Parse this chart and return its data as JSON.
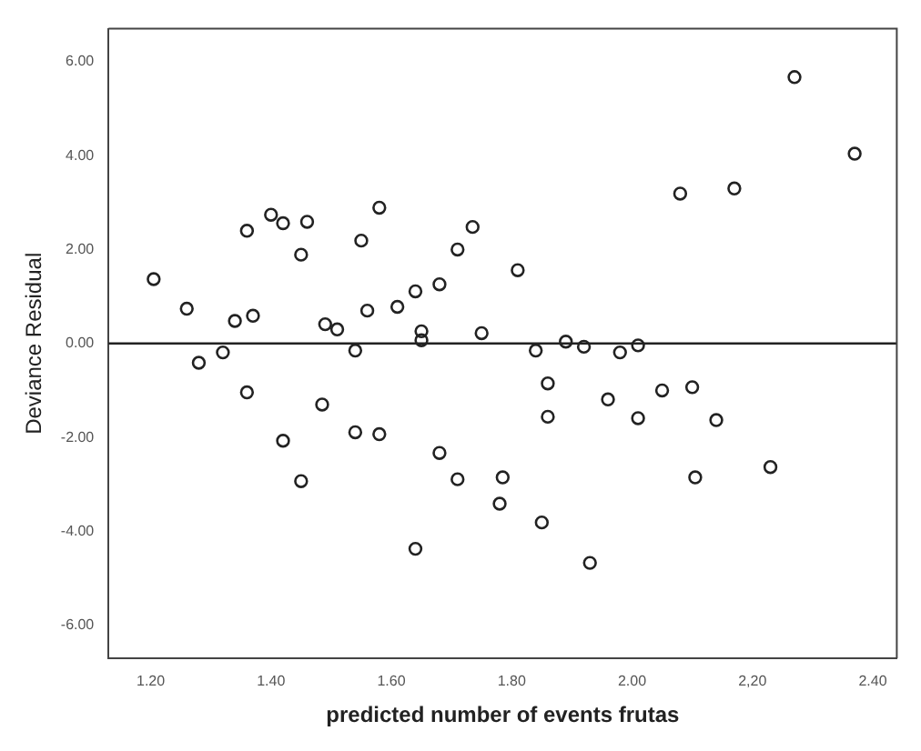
{
  "chart_data": {
    "type": "scatter",
    "xlabel": "predicted number of events frutas",
    "ylabel": "Deviance Residual",
    "x": [
      1.205,
      1.26,
      1.34,
      1.37,
      1.36,
      1.4,
      1.42,
      1.45,
      1.46,
      1.49,
      1.51,
      1.55,
      1.58,
      1.56,
      1.61,
      1.64,
      1.68,
      1.71,
      1.65,
      1.65,
      1.735,
      1.81,
      1.75,
      2.08,
      2.17,
      2.27,
      2.37,
      1.84,
      1.89,
      1.92,
      1.98,
      2.01,
      1.28,
      1.32,
      1.36,
      1.485,
      1.54,
      1.42,
      1.45,
      1.54,
      1.58,
      1.68,
      1.71,
      1.64,
      1.785,
      1.78,
      1.85,
      1.93,
      1.86,
      1.86,
      1.96,
      2.01,
      2.05,
      2.1,
      2.14,
      2.105,
      2.23
    ],
    "values": [
      1.37,
      0.74,
      0.48,
      0.59,
      2.4,
      2.74,
      2.56,
      1.89,
      2.59,
      0.41,
      0.3,
      2.19,
      2.89,
      0.7,
      0.78,
      1.11,
      1.26,
      2.0,
      0.26,
      0.07,
      2.48,
      1.56,
      0.22,
      3.19,
      3.3,
      5.67,
      4.04,
      -0.15,
      0.04,
      -0.07,
      -0.19,
      -0.04,
      -0.41,
      -0.19,
      -1.04,
      -1.3,
      -0.15,
      -2.07,
      -2.93,
      -1.89,
      -1.93,
      -2.33,
      -2.89,
      -4.37,
      -2.85,
      -3.41,
      -3.81,
      -4.67,
      -0.85,
      -1.56,
      -1.19,
      -1.59,
      -1.0,
      -0.93,
      -1.63,
      -2.85,
      -2.63
    ],
    "color": "#222222",
    "marker": "circle",
    "xlim": [
      1.13,
      2.44
    ],
    "xticks": [
      {
        "value": 1.2,
        "label": "1.20"
      },
      {
        "value": 1.4,
        "label": "1.40"
      },
      {
        "value": 1.6,
        "label": "1.60"
      },
      {
        "value": 1.8,
        "label": "1.80"
      },
      {
        "value": 2.0,
        "label": "2.00"
      },
      {
        "value": 2.2,
        "label": "2,20"
      },
      {
        "value": 2.4,
        "label": "2.40"
      }
    ],
    "ylim": [
      -6.7,
      6.7
    ],
    "yticks": [
      {
        "value": -6,
        "label": "-6.00"
      },
      {
        "value": -4,
        "label": "-4.00"
      },
      {
        "value": -2,
        "label": "-2.00"
      },
      {
        "value": 0,
        "label": "0.00"
      },
      {
        "value": 2,
        "label": "2.00"
      },
      {
        "value": 4,
        "label": "4.00"
      },
      {
        "value": 6,
        "label": "6.00"
      }
    ],
    "ref_lines": [
      {
        "axis": "y",
        "value": 0,
        "color": "#222222"
      }
    ],
    "grid": false,
    "legend": false
  }
}
